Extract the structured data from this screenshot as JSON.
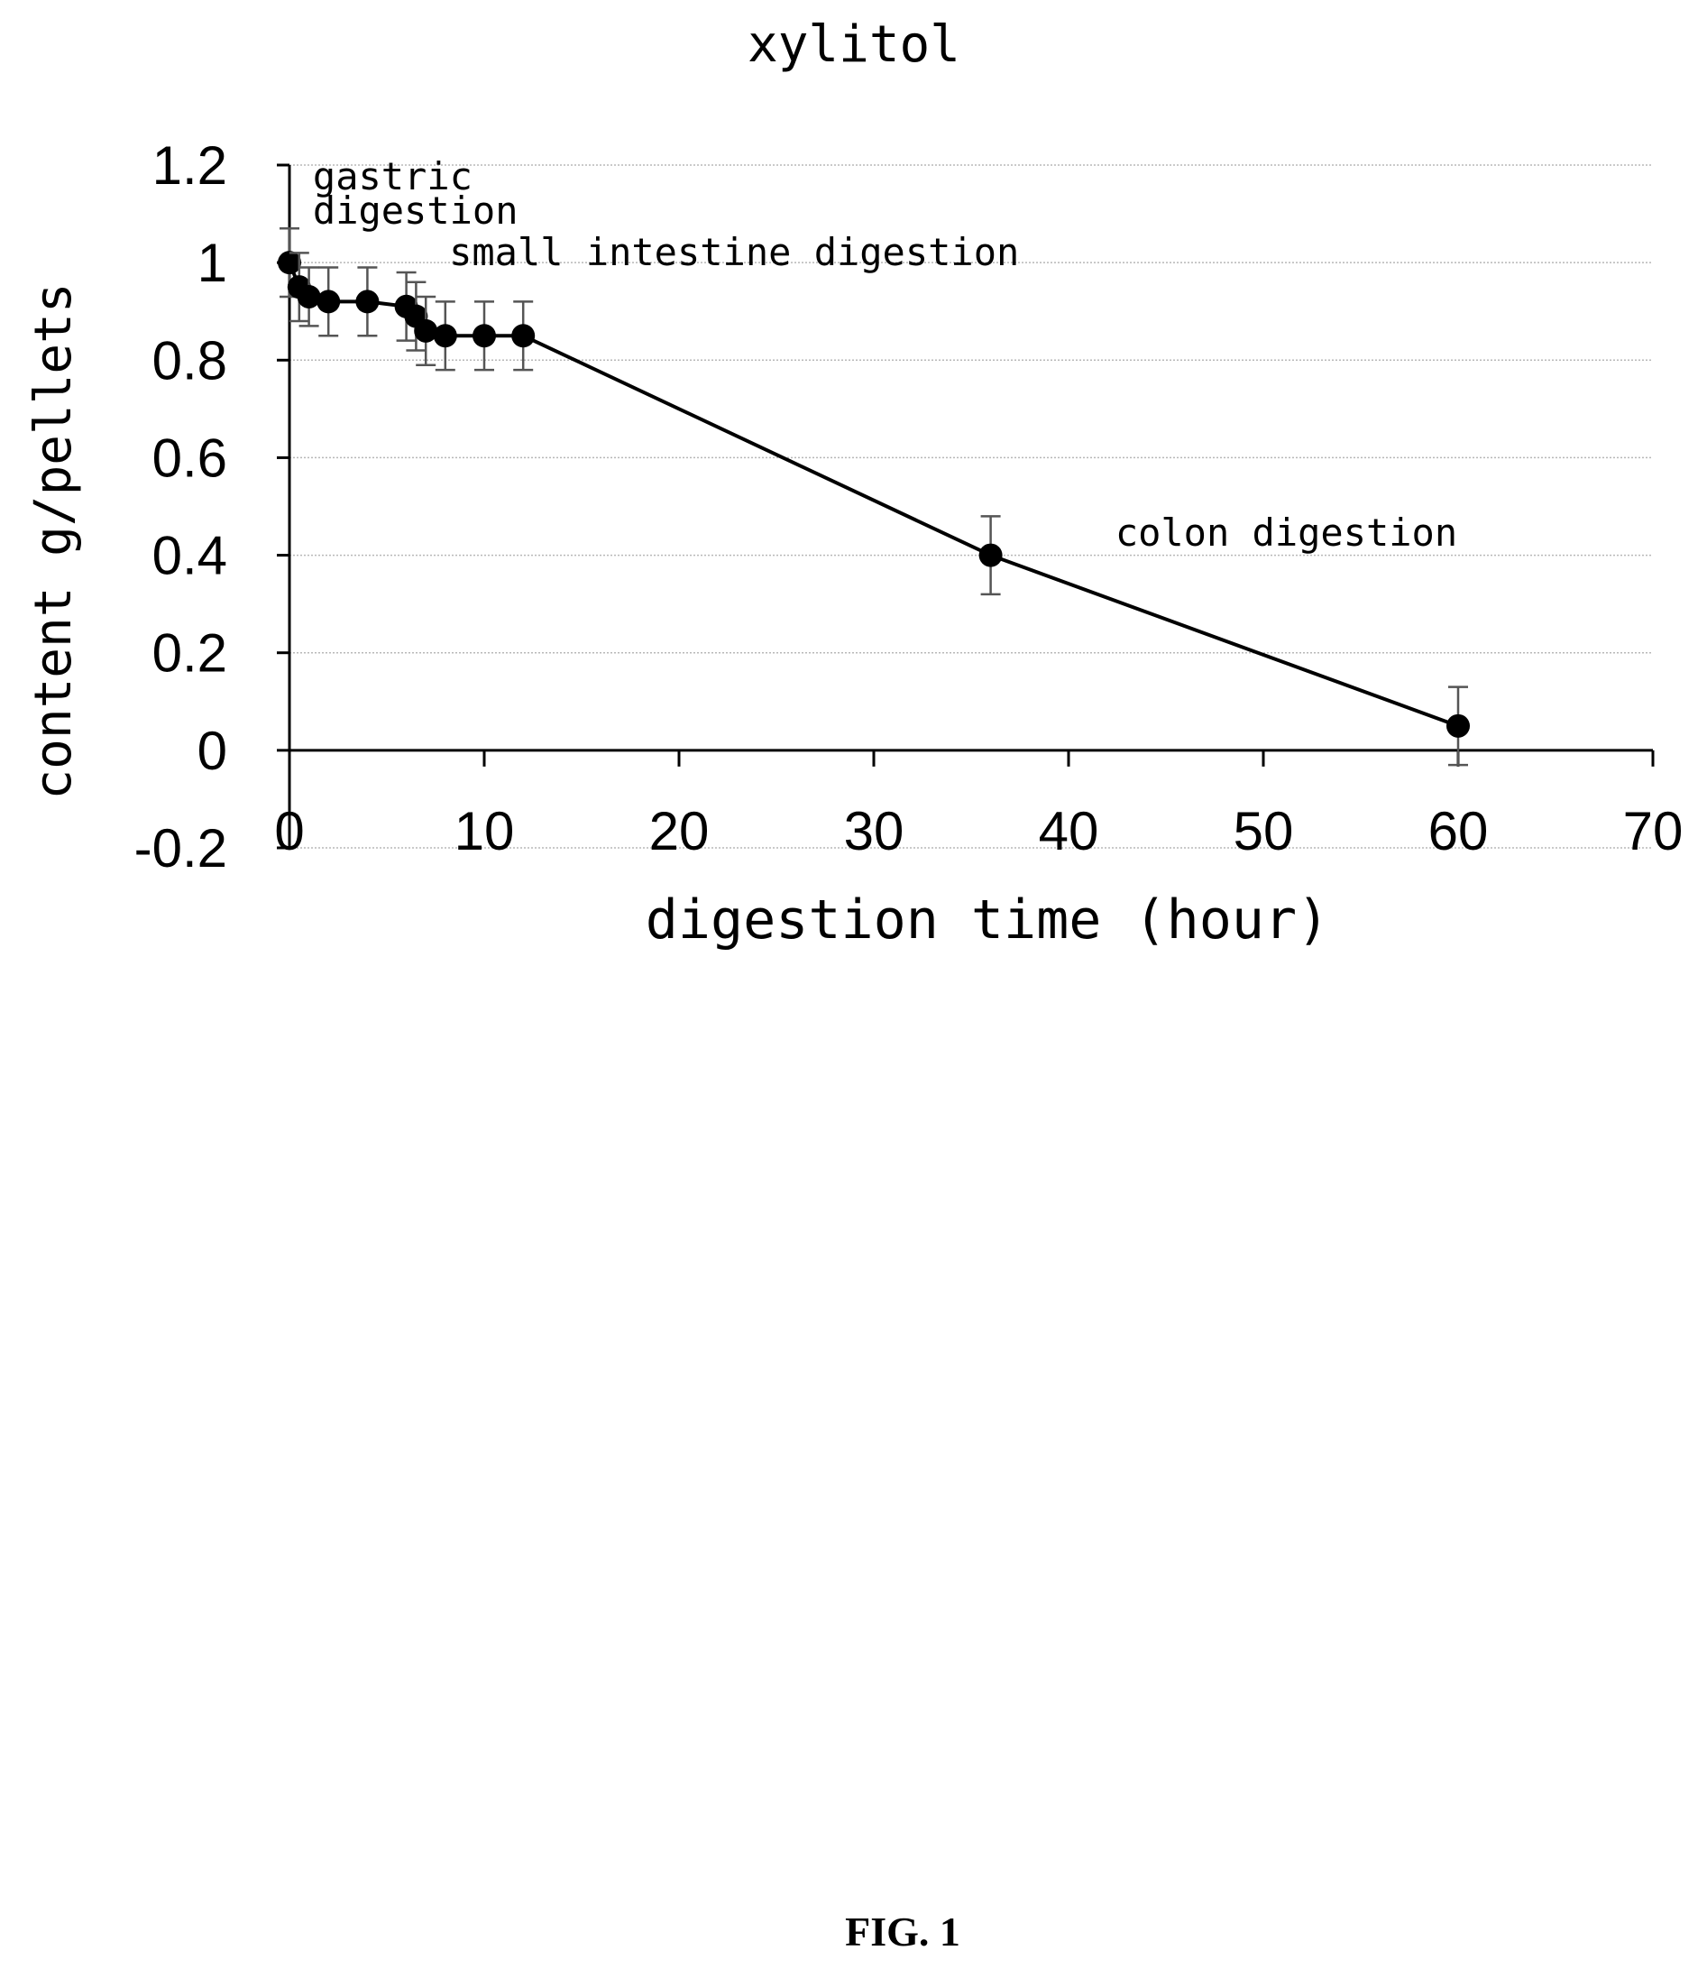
{
  "figure_label": "FIG. 1",
  "chart_data": {
    "type": "line",
    "title": "xylitol",
    "xlabel": "digestion time (hour)",
    "ylabel": "content g/pellets",
    "xlim": [
      0,
      70
    ],
    "ylim": [
      -0.2,
      1.2
    ],
    "x_ticks": [
      "0",
      "10",
      "20",
      "30",
      "40",
      "50",
      "60",
      "70"
    ],
    "y_ticks": [
      "-0.2",
      "0",
      "0.2",
      "0.4",
      "0.6",
      "0.8",
      "1",
      "1.2"
    ],
    "x_tick_values": [
      0,
      10,
      20,
      30,
      40,
      50,
      60,
      70
    ],
    "y_tick_values": [
      -0.2,
      0,
      0.2,
      0.4,
      0.6,
      0.8,
      1,
      1.2
    ],
    "grid": true,
    "series": [
      {
        "x": [
          0,
          0.5,
          1,
          2,
          4,
          6,
          6.5,
          7,
          8,
          10,
          12,
          36,
          60
        ],
        "y": [
          1.0,
          0.95,
          0.93,
          0.92,
          0.92,
          0.91,
          0.89,
          0.86,
          0.85,
          0.85,
          0.85,
          0.4,
          0.05
        ],
        "error": [
          0.07,
          0.07,
          0.06,
          0.07,
          0.07,
          0.07,
          0.07,
          0.07,
          0.07,
          0.07,
          0.07,
          0.08,
          0.08
        ],
        "color": "#000000"
      }
    ],
    "annotations": [
      {
        "text": "gastric",
        "x": 1.2,
        "y": 1.15
      },
      {
        "text": "digestion",
        "x": 1.2,
        "y": 1.08
      },
      {
        "text": "small intestine digestion",
        "x": 8.2,
        "y": 0.995
      },
      {
        "text": "colon digestion",
        "x": 42.4,
        "y": 0.42
      }
    ]
  }
}
